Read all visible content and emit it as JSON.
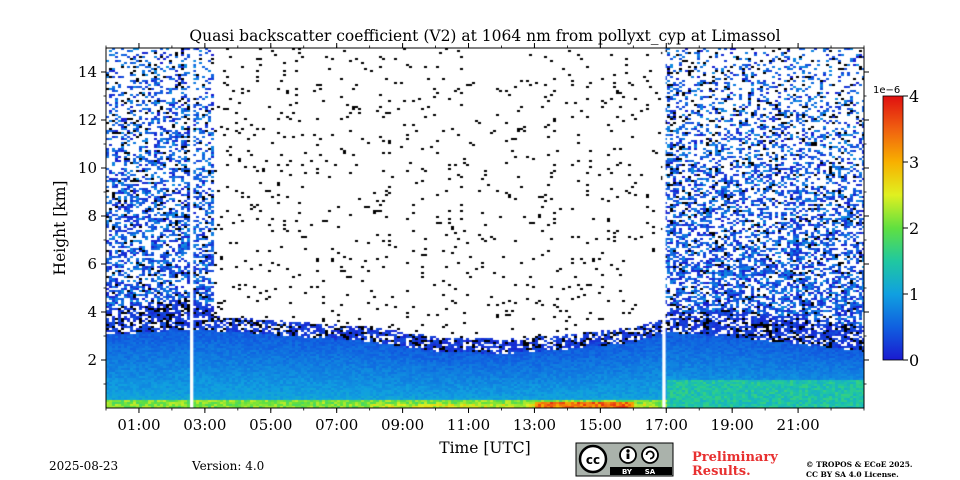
{
  "chart_data": {
    "type": "heatmap",
    "title": "Quasi backscatter coefficient (V2) at 1064 nm from pollyxt_cyp at Limassol",
    "xlabel": "Time [UTC]",
    "ylabel": "Height [km]",
    "x_unit": "hours UTC",
    "xlim": [
      0,
      23
    ],
    "ylim": [
      0,
      15
    ],
    "x_ticks": [
      {
        "value": 1,
        "label": "01:00"
      },
      {
        "value": 3,
        "label": "03:00"
      },
      {
        "value": 5,
        "label": "05:00"
      },
      {
        "value": 7,
        "label": "07:00"
      },
      {
        "value": 9,
        "label": "09:00"
      },
      {
        "value": 11,
        "label": "11:00"
      },
      {
        "value": 13,
        "label": "13:00"
      },
      {
        "value": 15,
        "label": "15:00"
      },
      {
        "value": 17,
        "label": "17:00"
      },
      {
        "value": 19,
        "label": "19:00"
      },
      {
        "value": 21,
        "label": "21:00"
      }
    ],
    "y_ticks": [
      {
        "value": 2,
        "label": "2"
      },
      {
        "value": 4,
        "label": "4"
      },
      {
        "value": 6,
        "label": "6"
      },
      {
        "value": 8,
        "label": "8"
      },
      {
        "value": 10,
        "label": "10"
      },
      {
        "value": 12,
        "label": "12"
      },
      {
        "value": 14,
        "label": "14"
      }
    ],
    "colorbar": {
      "range": [
        0,
        4
      ],
      "exponent_label": "1e−6",
      "ticks": [
        {
          "value": 0,
          "label": "0"
        },
        {
          "value": 1,
          "label": "1"
        },
        {
          "value": 2,
          "label": "2"
        },
        {
          "value": 3,
          "label": "3"
        },
        {
          "value": 4,
          "label": "4"
        }
      ],
      "colors": [
        "#1a1ad0",
        "#1060e0",
        "#10a0e0",
        "#20c8a0",
        "#60e040",
        "#e0f020",
        "#f8b000",
        "#f06010",
        "#e01010"
      ]
    },
    "data_gaps_hours": [
      {
        "start": 2.55,
        "end": 2.65
      },
      {
        "start": 16.88,
        "end": 16.98
      }
    ],
    "boundary_layer_top_km": [
      {
        "x": 0,
        "y": 3.1
      },
      {
        "x": 2.5,
        "y": 3.3
      },
      {
        "x": 4,
        "y": 3.2
      },
      {
        "x": 6,
        "y": 3.0
      },
      {
        "x": 8,
        "y": 2.8
      },
      {
        "x": 10,
        "y": 2.4
      },
      {
        "x": 12,
        "y": 2.3
      },
      {
        "x": 14,
        "y": 2.5
      },
      {
        "x": 16,
        "y": 2.8
      },
      {
        "x": 17,
        "y": 3.2
      },
      {
        "x": 19,
        "y": 3.0
      },
      {
        "x": 21,
        "y": 2.7
      },
      {
        "x": 23,
        "y": 2.4
      }
    ],
    "aerosol_layer_top_km": [
      {
        "x": 0,
        "y": 4.2
      },
      {
        "x": 2.5,
        "y": 4.6
      },
      {
        "x": 4,
        "y": 3.9
      },
      {
        "x": 6,
        "y": 3.6
      },
      {
        "x": 8,
        "y": 3.3
      },
      {
        "x": 17,
        "y": 4.0
      },
      {
        "x": 19,
        "y": 4.1
      },
      {
        "x": 21,
        "y": 3.8
      },
      {
        "x": 23,
        "y": 3.4
      }
    ]
  },
  "footer": {
    "date": "2025-08-23",
    "version": "Version: 4.0",
    "license_badge_labels": [
      "BY",
      "SA"
    ],
    "preliminary_line1": "Preliminary",
    "preliminary_line2": "Results.",
    "copyright_line1": "© TROPOS & ECoE 2025.",
    "copyright_line2": "CC BY SA 4.0 License.",
    "preliminary_color": "#e83030"
  }
}
